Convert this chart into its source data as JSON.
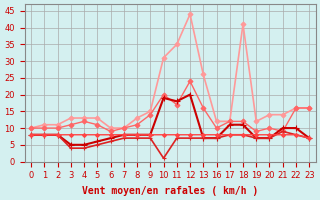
{
  "title": "",
  "xlabel": "Vent moyen/en rafales ( km/h )",
  "background_color": "#d4f0f0",
  "grid_color": "#aaaaaa",
  "x_ticks": [
    0,
    1,
    2,
    3,
    4,
    5,
    6,
    7,
    8,
    9,
    10,
    11,
    12,
    13,
    16,
    17,
    18,
    19,
    20,
    21,
    22,
    23
  ],
  "ylim": [
    0,
    47
  ],
  "yticks": [
    0,
    5,
    10,
    15,
    20,
    25,
    30,
    35,
    40,
    45
  ],
  "series": [
    {
      "color": "#ff9999",
      "linewidth": 1.2,
      "marker": "D",
      "markersize": 2.5,
      "values": [
        10,
        11,
        11,
        13,
        13,
        13,
        10,
        10,
        13,
        15,
        31,
        35,
        44,
        26,
        12,
        12,
        41,
        12,
        14,
        14,
        16,
        16
      ]
    },
    {
      "color": "#ff6666",
      "linewidth": 1.0,
      "marker": "D",
      "markersize": 2.5,
      "values": [
        10,
        10,
        10,
        11,
        12,
        11,
        9,
        10,
        11,
        14,
        20,
        17,
        24,
        16,
        10,
        12,
        12,
        9,
        10,
        9,
        16,
        16
      ]
    },
    {
      "color": "#cc0000",
      "linewidth": 1.5,
      "marker": "+",
      "markersize": 4,
      "values": [
        8,
        8,
        8,
        5,
        5,
        6,
        7,
        8,
        8,
        8,
        19,
        18,
        20,
        7,
        7,
        11,
        11,
        7,
        7,
        10,
        10,
        7
      ]
    },
    {
      "color": "#dd2222",
      "linewidth": 1.2,
      "marker": "+",
      "markersize": 3.5,
      "values": [
        8,
        8,
        8,
        4,
        4,
        5,
        6,
        7,
        7,
        7,
        1,
        7,
        7,
        7,
        7,
        8,
        8,
        7,
        7,
        9,
        8,
        7
      ]
    },
    {
      "color": "#ff4444",
      "linewidth": 1.0,
      "marker": "D",
      "markersize": 2,
      "values": [
        8,
        8,
        8,
        8,
        8,
        8,
        8,
        8,
        8,
        8,
        8,
        8,
        8,
        8,
        8,
        8,
        8,
        8,
        8,
        8,
        8,
        7
      ]
    }
  ]
}
